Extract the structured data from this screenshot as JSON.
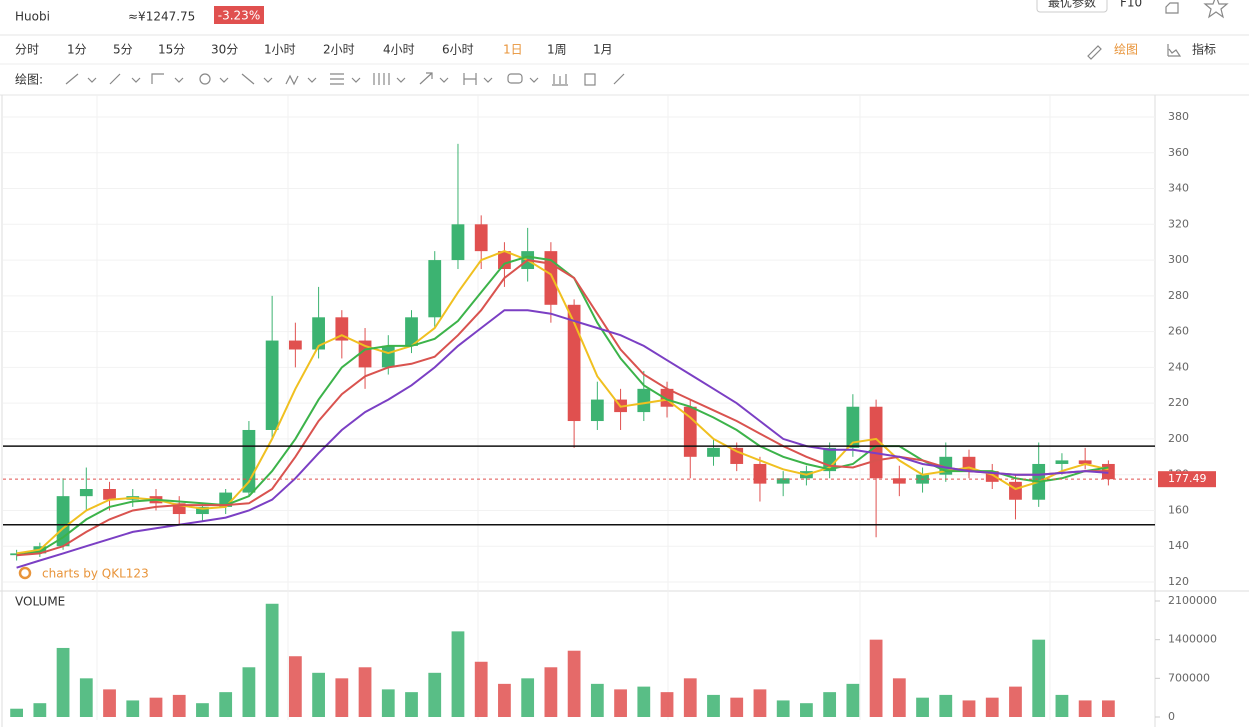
{
  "header": {
    "exchange": "Huobi",
    "cny_price": "≈¥1247.75",
    "change": "-3.23%",
    "params_button": "最优参数",
    "f10": "F10"
  },
  "toolbar": {
    "intervals": [
      "分时",
      "1分",
      "5分",
      "15分",
      "30分",
      "1小时",
      "2小时",
      "4小时",
      "6小时",
      "1日",
      "1周",
      "1月"
    ],
    "active": "1日",
    "draw": "绘图",
    "indicators": "指标",
    "draw_label": "绘图:"
  },
  "chart_data": {
    "type": "candlestick",
    "watermark": "charts by QKL123",
    "volume_label": "VOLUME",
    "open": [
      135,
      136,
      140,
      168,
      172,
      166,
      168,
      164,
      158,
      162,
      170,
      205,
      255,
      250,
      268,
      255,
      240,
      252,
      268,
      300,
      320,
      305,
      295,
      305,
      275,
      210,
      222,
      215,
      228,
      218,
      190,
      195,
      186,
      175,
      178,
      182,
      195,
      218,
      178,
      175,
      180,
      190,
      182,
      176,
      166,
      186,
      188,
      186
    ],
    "high": [
      138,
      142,
      178,
      184,
      176,
      172,
      172,
      168,
      164,
      172,
      210,
      280,
      265,
      285,
      272,
      262,
      258,
      272,
      305,
      365,
      325,
      310,
      318,
      310,
      278,
      232,
      228,
      238,
      232,
      222,
      200,
      198,
      190,
      182,
      185,
      198,
      225,
      222,
      185,
      184,
      198,
      194,
      186,
      180,
      198,
      192,
      195,
      188
    ],
    "low": [
      132,
      134,
      138,
      160,
      160,
      162,
      160,
      152,
      154,
      158,
      168,
      200,
      240,
      245,
      245,
      228,
      236,
      248,
      262,
      295,
      295,
      285,
      288,
      265,
      195,
      205,
      205,
      210,
      212,
      178,
      185,
      182,
      165,
      168,
      174,
      178,
      190,
      145,
      168,
      170,
      176,
      178,
      172,
      155,
      162,
      180,
      183,
      174
    ],
    "close": [
      136,
      140,
      168,
      172,
      166,
      168,
      164,
      158,
      162,
      170,
      205,
      255,
      250,
      268,
      255,
      240,
      252,
      268,
      300,
      320,
      305,
      295,
      305,
      275,
      210,
      222,
      215,
      228,
      218,
      190,
      195,
      186,
      175,
      178,
      182,
      195,
      218,
      178,
      175,
      180,
      190,
      182,
      176,
      166,
      186,
      188,
      186,
      177.49
    ],
    "volume": [
      150000,
      250000,
      1250000,
      700000,
      500000,
      300000,
      350000,
      400000,
      250000,
      450000,
      900000,
      2050000,
      1100000,
      800000,
      700000,
      900000,
      500000,
      450000,
      800000,
      1550000,
      1000000,
      600000,
      700000,
      900000,
      1200000,
      600000,
      500000,
      550000,
      450000,
      700000,
      400000,
      350000,
      500000,
      300000,
      250000,
      450000,
      600000,
      1400000,
      700000,
      350000,
      400000,
      300000,
      350000,
      550000,
      1400000,
      400000,
      300000,
      300000
    ],
    "up_color": "#3cb371",
    "down_color": "#e0504f",
    "ma": [
      {
        "color": "#f0c020",
        "values": [
          136,
          138,
          150,
          160,
          166,
          167,
          166,
          163,
          161,
          162,
          176,
          200,
          228,
          252,
          258,
          252,
          248,
          252,
          262,
          282,
          300,
          305,
          300,
          292,
          265,
          235,
          218,
          220,
          222,
          212,
          200,
          193,
          188,
          183,
          180,
          184,
          198,
          200,
          188,
          180,
          182,
          184,
          180,
          172,
          176,
          182,
          186,
          183
        ]
      },
      {
        "color": "#3cb34a",
        "values": [
          135,
          137,
          145,
          155,
          162,
          165,
          166,
          165,
          164,
          163,
          168,
          182,
          200,
          222,
          240,
          250,
          252,
          252,
          256,
          266,
          282,
          298,
          302,
          300,
          290,
          265,
          245,
          230,
          222,
          218,
          212,
          205,
          196,
          190,
          186,
          183,
          186,
          196,
          196,
          188,
          182,
          182,
          182,
          178,
          176,
          178,
          182,
          184
        ]
      },
      {
        "color": "#d9534f",
        "values": [
          135,
          136,
          140,
          148,
          155,
          160,
          162,
          163,
          163,
          163,
          164,
          172,
          190,
          210,
          225,
          235,
          240,
          242,
          246,
          258,
          272,
          290,
          300,
          298,
          290,
          270,
          250,
          236,
          228,
          222,
          216,
          210,
          203,
          196,
          190,
          185,
          184,
          188,
          190,
          188,
          184,
          182,
          181,
          180,
          180,
          181,
          182,
          182
        ]
      },
      {
        "color": "#7b3fc4",
        "values": [
          128,
          132,
          136,
          140,
          144,
          148,
          150,
          152,
          154,
          156,
          160,
          166,
          178,
          192,
          205,
          215,
          222,
          230,
          240,
          252,
          262,
          272,
          272,
          270,
          266,
          262,
          258,
          252,
          244,
          236,
          228,
          220,
          210,
          200,
          196,
          194,
          194,
          192,
          190,
          186,
          184,
          182,
          181,
          180,
          180,
          181,
          182,
          181
        ]
      }
    ],
    "hlines": [
      196,
      152
    ],
    "last_price": 177.49,
    "ylim": [
      120,
      380
    ],
    "yticks": [
      120,
      140,
      160,
      180,
      200,
      220,
      240,
      260,
      280,
      300,
      320,
      340,
      360,
      380
    ],
    "vlim": [
      0,
      2100000
    ],
    "vticks": [
      0,
      700000,
      1400000,
      2100000
    ],
    "grid": true
  }
}
